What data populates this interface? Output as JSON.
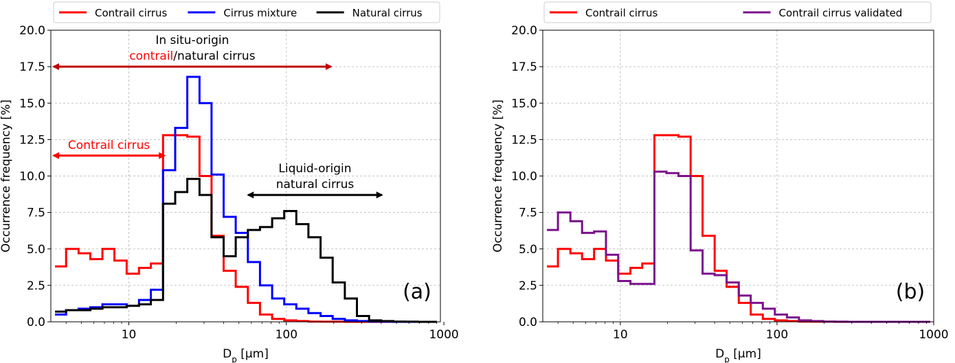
{
  "chart_data": [
    {
      "type": "line",
      "panel_label": "(a)",
      "xlabel_main": "D",
      "xlabel_sub": "p",
      "xlabel_unit": " [µm]",
      "ylabel": "Occurrence frequency [%]",
      "xscale": "log",
      "xlim": [
        3.2,
        950
      ],
      "ylim": [
        0,
        20
      ],
      "xticks": [
        10,
        100,
        1000
      ],
      "xtick_labels": [
        "10",
        "100",
        "1000"
      ],
      "yticks": [
        0,
        2.5,
        5,
        7.5,
        10,
        12.5,
        15,
        17.5,
        20
      ],
      "ytick_labels": [
        "0.0",
        "2.5",
        "5.0",
        "7.5",
        "10.0",
        "12.5",
        "15.0",
        "17.5",
        "20.0"
      ],
      "grid": true,
      "legend_placement": "top",
      "bin_edges": [
        3.4,
        4.0,
        4.8,
        5.7,
        6.8,
        8.1,
        9.7,
        11.6,
        13.8,
        16.5,
        19.7,
        23.5,
        28.1,
        33.5,
        40.0,
        47.7,
        57.0,
        68.0,
        81.2,
        96.9,
        115.7,
        138.1,
        164.9,
        196.8,
        235.0,
        280.5,
        334.9,
        399.8,
        477.3,
        569.8,
        680.3,
        812.1,
        900
      ],
      "series": [
        {
          "name": "Contrail cirrus",
          "color": "#ff0000",
          "values": [
            3.8,
            5.0,
            4.7,
            4.3,
            5.0,
            4.2,
            3.3,
            3.7,
            4.0,
            12.8,
            12.8,
            12.7,
            10.0,
            5.9,
            3.5,
            2.4,
            1.3,
            0.5,
            0.2,
            0.1,
            0.05,
            0.02,
            0.01,
            0.01,
            0,
            0,
            0,
            0,
            0,
            0,
            0,
            0
          ]
        },
        {
          "name": "Cirrus mixture",
          "color": "#0000ff",
          "values": [
            0.5,
            0.8,
            0.9,
            1.0,
            1.2,
            1.2,
            1.1,
            1.5,
            2.2,
            10.4,
            13.3,
            16.8,
            15.0,
            10.1,
            7.2,
            6.1,
            4.1,
            2.5,
            1.6,
            1.2,
            0.9,
            0.6,
            0.4,
            0.2,
            0.1,
            0.05,
            0.02,
            0.01,
            0,
            0,
            0,
            0
          ]
        },
        {
          "name": "Natural cirrus",
          "color": "#000000",
          "values": [
            0.7,
            0.8,
            0.8,
            0.9,
            1.0,
            1.0,
            1.1,
            1.2,
            1.5,
            8.1,
            8.9,
            9.8,
            8.7,
            5.8,
            4.5,
            5.8,
            6.3,
            6.5,
            7.1,
            7.6,
            6.7,
            5.8,
            4.4,
            2.7,
            1.6,
            0.4,
            0.1,
            0.05,
            0.02,
            0.01,
            0,
            0
          ]
        }
      ],
      "annotations": [
        {
          "lines": [
            "In situ-origin",
            "contrail/natural cirrus"
          ],
          "highlight_word": "contrail",
          "highlight_color": "#ff0000",
          "arrow_x": [
            3.2,
            200
          ],
          "arrow_y": 17.5,
          "arrow_color": "#c00000"
        },
        {
          "lines": [
            "Contrail cirrus"
          ],
          "color": "#ff0000",
          "arrow_x": [
            3.2,
            17.5
          ],
          "arrow_y": 11.4,
          "arrow_color": "#ff0000"
        },
        {
          "lines": [
            "Liquid-origin",
            "natural cirrus"
          ],
          "color": "#000000",
          "arrow_x": [
            55,
            420
          ],
          "arrow_y": 8.7,
          "arrow_color": "#000000"
        }
      ]
    },
    {
      "type": "line",
      "panel_label": "(b)",
      "xlabel_main": "D",
      "xlabel_sub": "p",
      "xlabel_unit": " [µm]",
      "ylabel": "Occurrence frequency [%]",
      "xscale": "log",
      "xlim": [
        3.2,
        1000
      ],
      "ylim": [
        0,
        20
      ],
      "xticks": [
        10,
        100,
        1000
      ],
      "xtick_labels": [
        "10",
        "100",
        "1000"
      ],
      "yticks": [
        0,
        2.5,
        5,
        7.5,
        10,
        12.5,
        15,
        17.5,
        20
      ],
      "ytick_labels": [
        "0.0",
        "2.5",
        "5.0",
        "7.5",
        "10.0",
        "12.5",
        "15.0",
        "17.5",
        "20.0"
      ],
      "grid": true,
      "legend_placement": "top",
      "bin_edges": [
        3.4,
        4.0,
        4.8,
        5.7,
        6.8,
        8.1,
        9.7,
        11.6,
        13.8,
        16.5,
        19.7,
        23.5,
        28.1,
        33.5,
        40.0,
        47.7,
        57.0,
        68.0,
        81.2,
        96.9,
        115.7,
        138.1,
        164.9,
        196.8,
        235.0,
        280.5,
        334.9,
        399.8,
        477.3,
        569.8,
        680.3,
        812.1,
        950
      ],
      "series": [
        {
          "name": "Contrail cirrus",
          "color": "#ff0000",
          "values": [
            3.8,
            5.0,
            4.7,
            4.3,
            5.0,
            4.2,
            3.3,
            3.7,
            4.0,
            12.8,
            12.8,
            12.7,
            10.0,
            5.9,
            3.5,
            2.4,
            1.3,
            0.5,
            0.2,
            0.1,
            0.05,
            0.02,
            0.01,
            0.01,
            0,
            0,
            0,
            0,
            0,
            0,
            0,
            0
          ]
        },
        {
          "name": "Contrail cirrus validated",
          "color": "#7b0f8c",
          "values": [
            6.3,
            7.5,
            6.9,
            6.1,
            6.2,
            4.6,
            2.8,
            2.6,
            2.6,
            10.3,
            10.2,
            10.0,
            4.9,
            3.3,
            3.2,
            2.7,
            1.8,
            1.3,
            0.9,
            0.5,
            0.3,
            0.1,
            0.05,
            0.02,
            0.01,
            0,
            0,
            0,
            0,
            0,
            0,
            0
          ]
        }
      ]
    }
  ]
}
